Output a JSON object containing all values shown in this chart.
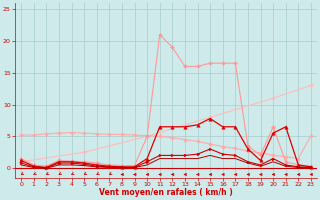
{
  "xlabel": "Vent moyen/en rafales ( km/h )",
  "xlim": [
    -0.5,
    23.5
  ],
  "ylim": [
    -1.5,
    26
  ],
  "yticks": [
    0,
    5,
    10,
    15,
    20,
    25
  ],
  "xticks": [
    0,
    1,
    2,
    3,
    4,
    5,
    6,
    7,
    8,
    9,
    10,
    11,
    12,
    13,
    14,
    15,
    16,
    17,
    18,
    19,
    20,
    21,
    22,
    23
  ],
  "bg_color": "#ceeaea",
  "grid_color": "#aacccc",
  "dark_red": "#cc0000",
  "light_pink": "#ffaaaa",
  "mid_pink": "#ff7777",
  "series": [
    {
      "x": [
        0,
        5,
        10,
        15,
        20,
        23
      ],
      "y": [
        1.0,
        2.5,
        5.0,
        8.0,
        11.0,
        13.0
      ],
      "color": "#ffbbbb",
      "marker": "D",
      "markersize": 2,
      "linewidth": 0.8,
      "linestyle": "-"
    },
    {
      "x": [
        0,
        1,
        2,
        3,
        4,
        5,
        6,
        7,
        8,
        9,
        10,
        11,
        12,
        13,
        14,
        15,
        16,
        17,
        18,
        19,
        20,
        21,
        22,
        23
      ],
      "y": [
        5.2,
        5.2,
        5.4,
        5.5,
        5.6,
        5.5,
        5.4,
        5.3,
        5.3,
        5.2,
        5.1,
        5.0,
        4.8,
        4.5,
        4.2,
        3.8,
        3.4,
        3.1,
        2.7,
        2.4,
        2.0,
        1.8,
        1.5,
        5.1
      ],
      "color": "#ffaaaa",
      "marker": "D",
      "markersize": 2,
      "linewidth": 0.8,
      "linestyle": "-"
    },
    {
      "x": [
        0,
        1,
        2,
        3,
        4,
        5,
        6,
        7,
        8,
        9,
        10,
        11,
        12,
        13,
        14,
        15,
        16,
        17,
        18,
        19,
        20,
        21,
        22,
        23
      ],
      "y": [
        1.5,
        0.5,
        0.3,
        1.2,
        1.1,
        1.0,
        0.8,
        0.5,
        0.4,
        0.4,
        5.0,
        21.0,
        19.0,
        16.0,
        16.0,
        16.5,
        16.5,
        16.5,
        3.5,
        2.0,
        6.5,
        1.0,
        0.5,
        0.3
      ],
      "color": "#ff9999",
      "marker": "D",
      "markersize": 2,
      "linewidth": 0.8,
      "linestyle": "-"
    },
    {
      "x": [
        0,
        1,
        2,
        3,
        4,
        5,
        6,
        7,
        8,
        9,
        10,
        11,
        12,
        13,
        14,
        15,
        16,
        17,
        18,
        19,
        20,
        21,
        22,
        23
      ],
      "y": [
        1.2,
        0.3,
        0.1,
        1.0,
        1.0,
        0.8,
        0.5,
        0.3,
        0.2,
        0.2,
        1.5,
        6.5,
        6.5,
        6.5,
        6.8,
        7.8,
        6.5,
        6.5,
        3.0,
        1.2,
        5.5,
        6.5,
        0.5,
        0.2
      ],
      "color": "#dd0000",
      "marker": "^",
      "markersize": 2.5,
      "linewidth": 0.9,
      "linestyle": "-"
    },
    {
      "x": [
        0,
        1,
        2,
        3,
        4,
        5,
        6,
        7,
        8,
        9,
        10,
        11,
        12,
        13,
        14,
        15,
        16,
        17,
        18,
        19,
        20,
        21,
        22,
        23
      ],
      "y": [
        0.8,
        0.2,
        0.05,
        0.8,
        0.8,
        0.6,
        0.3,
        0.2,
        0.1,
        0.1,
        1.0,
        2.0,
        2.0,
        2.0,
        2.2,
        3.0,
        2.2,
        2.0,
        1.0,
        0.5,
        1.5,
        0.5,
        0.2,
        0.1
      ],
      "color": "#cc0000",
      "marker": ">",
      "markersize": 2,
      "linewidth": 0.8,
      "linestyle": "-"
    },
    {
      "x": [
        0,
        1,
        2,
        3,
        4,
        5,
        6,
        7,
        8,
        9,
        10,
        11,
        12,
        13,
        14,
        15,
        16,
        17,
        18,
        19,
        20,
        21,
        22,
        23
      ],
      "y": [
        0.5,
        0.1,
        0.0,
        0.5,
        0.5,
        0.4,
        0.2,
        0.1,
        0.1,
        0.1,
        0.5,
        1.5,
        1.5,
        1.5,
        1.5,
        2.0,
        1.5,
        1.5,
        0.8,
        0.3,
        1.0,
        0.3,
        0.1,
        0.05
      ],
      "color": "#aa0000",
      "marker": null,
      "markersize": 0,
      "linewidth": 0.7,
      "linestyle": "-"
    }
  ],
  "arrows": {
    "x": [
      0,
      1,
      2,
      3,
      4,
      5,
      6,
      7,
      8,
      9,
      10,
      11,
      12,
      13,
      14,
      15,
      16,
      17,
      18,
      19,
      20,
      21,
      22,
      23
    ],
    "y_base": -1.0,
    "angles_deg": [
      225,
      225,
      225,
      225,
      225,
      225,
      225,
      225,
      180,
      180,
      180,
      180,
      180,
      180,
      180,
      180,
      180,
      180,
      180,
      180,
      180,
      180,
      180,
      180
    ]
  }
}
